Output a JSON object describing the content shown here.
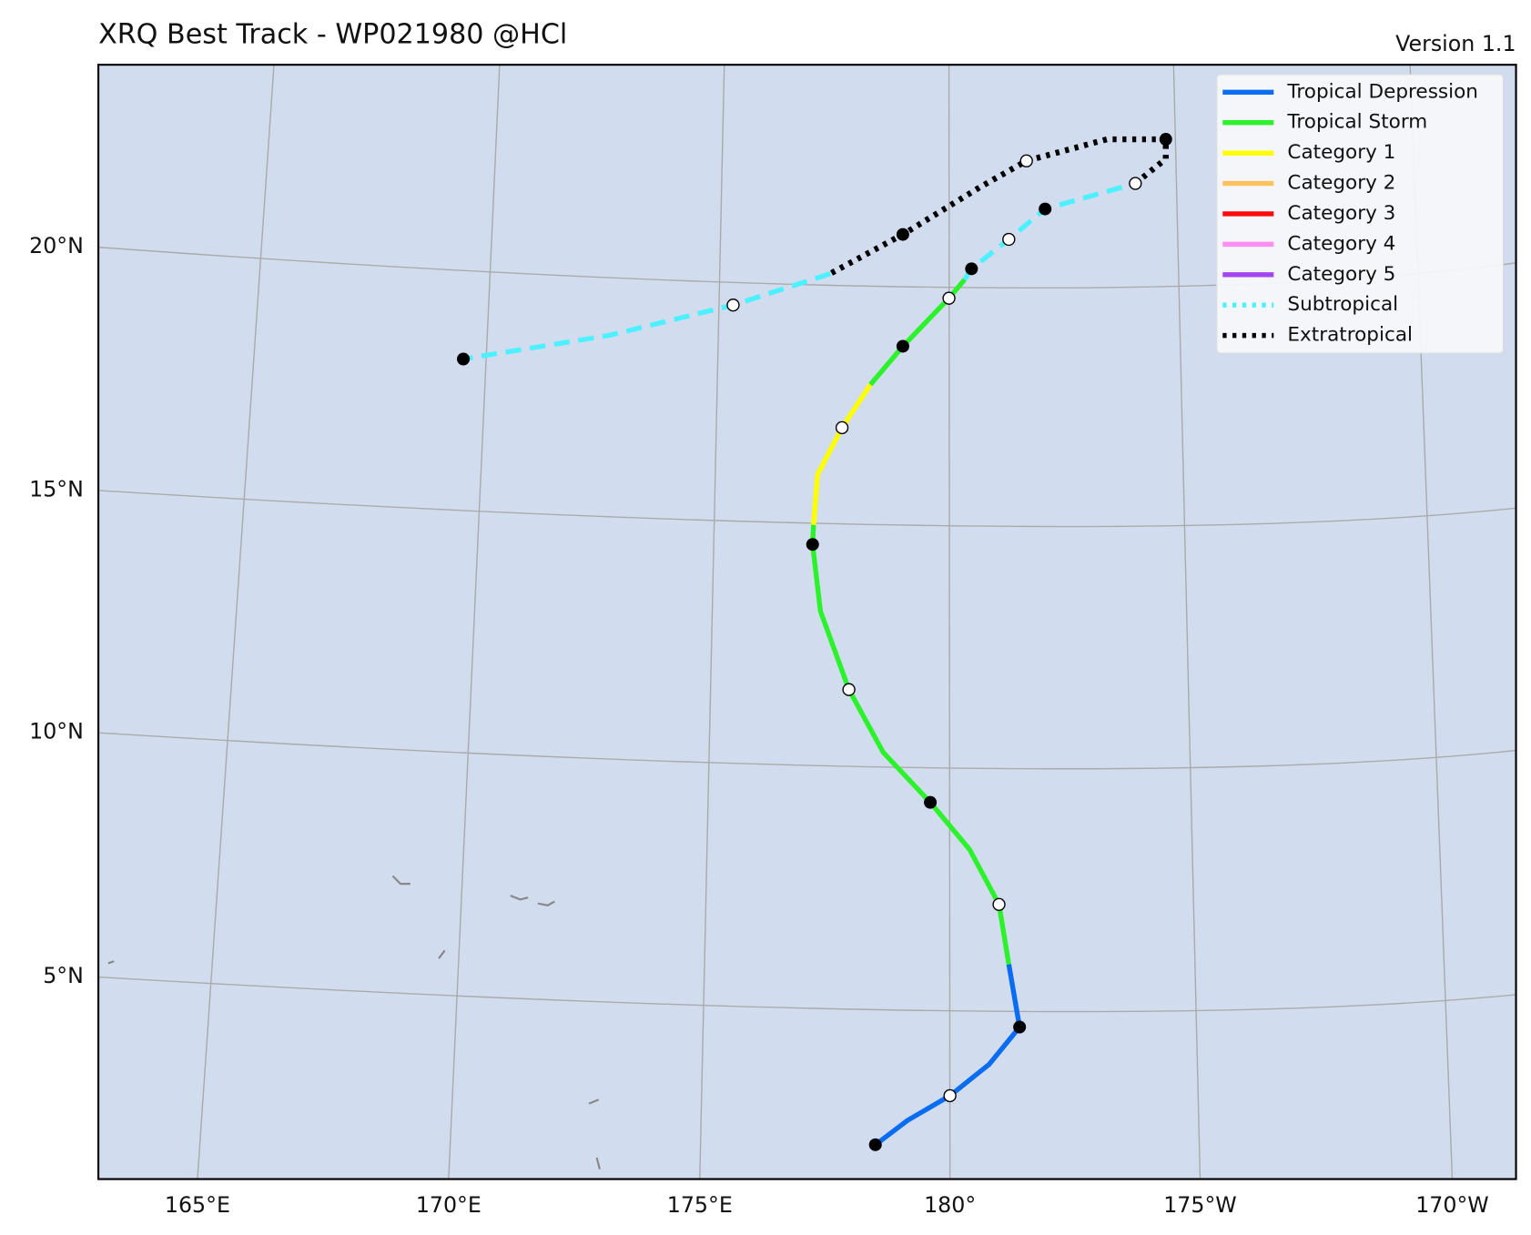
{
  "header": {
    "title": "XRQ Best Track - WP021980  @HCl",
    "version": "Version 1.1"
  },
  "map": {
    "lon_labels": [
      "165°E",
      "170°E",
      "175°E",
      "180°",
      "175°W",
      "170°W"
    ],
    "lat_labels": [
      "20°N",
      "15°N",
      "10°N",
      "5°N"
    ],
    "legend": [
      {
        "label": "Tropical Depression",
        "color": "#0a6cf0",
        "style": "solid"
      },
      {
        "label": "Tropical Storm",
        "color": "#2cf22c",
        "style": "solid"
      },
      {
        "label": "Category 1",
        "color": "#ffff00",
        "style": "solid"
      },
      {
        "label": "Category 2",
        "color": "#ffc15a",
        "style": "solid"
      },
      {
        "label": "Category 3",
        "color": "#ff0a0a",
        "style": "solid"
      },
      {
        "label": "Category 4",
        "color": "#ff8ff0",
        "style": "solid"
      },
      {
        "label": "Category 5",
        "color": "#a445f0",
        "style": "solid"
      },
      {
        "label": "Subtropical",
        "color": "#4cf0ff",
        "style": "dotted"
      },
      {
        "label": "Extratropical",
        "color": "#000000",
        "style": "dotted"
      }
    ]
  }
}
